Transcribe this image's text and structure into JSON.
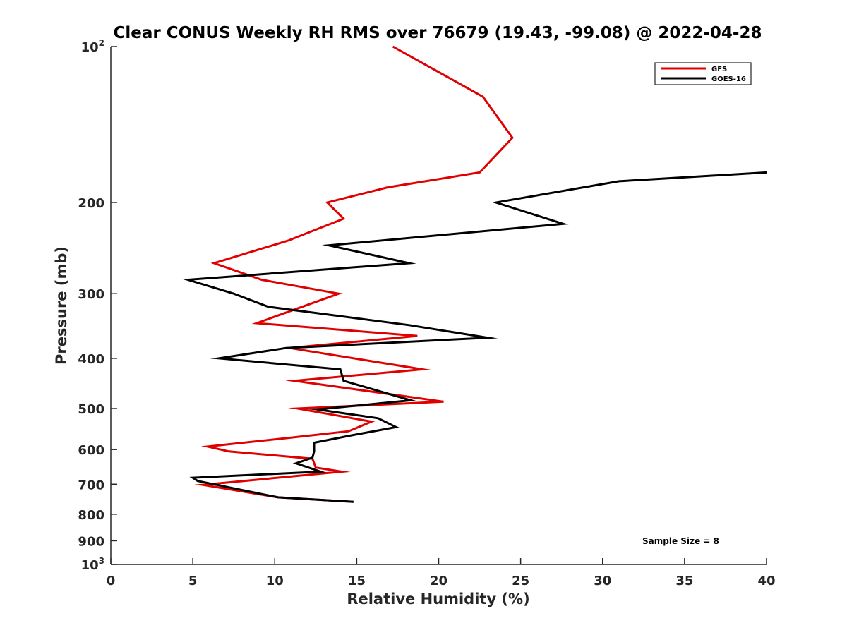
{
  "chart_data": {
    "type": "line",
    "title": "Clear CONUS Weekly RH RMS over 76679 (19.43, -99.08) @ 2022-04-28",
    "xlabel": "Relative Humidity (%)",
    "ylabel": "Pressure (mb)",
    "xlim": [
      0,
      40
    ],
    "ylim": [
      100,
      1000
    ],
    "y_scale": "log",
    "y_reversed": true,
    "grid": false,
    "x_ticks": [
      "0",
      "5",
      "10",
      "15",
      "20",
      "25",
      "30",
      "35",
      "40"
    ],
    "y_ticks": [
      {
        "value": 100,
        "base": "10",
        "exp": "2"
      },
      {
        "value": 200,
        "label": "200"
      },
      {
        "value": 300,
        "label": "300"
      },
      {
        "value": 400,
        "label": "400"
      },
      {
        "value": 500,
        "label": "500"
      },
      {
        "value": 600,
        "label": "600"
      },
      {
        "value": 700,
        "label": "700"
      },
      {
        "value": 800,
        "label": "800"
      },
      {
        "value": 900,
        "label": "900"
      },
      {
        "value": 1000,
        "base": "10",
        "exp": "3"
      }
    ],
    "legend_position": "top-right",
    "annotation": "Sample Size = 8",
    "series": [
      {
        "name": "GFS",
        "color": "#e00000",
        "points": [
          [
            17.2,
            100
          ],
          [
            22.7,
            125
          ],
          [
            24.5,
            150
          ],
          [
            22.5,
            175
          ],
          [
            16.9,
            187
          ],
          [
            13.2,
            200
          ],
          [
            14.2,
            215
          ],
          [
            10.8,
            237
          ],
          [
            6.3,
            262
          ],
          [
            9.2,
            282
          ],
          [
            13.9,
            300
          ],
          [
            8.9,
            342
          ],
          [
            18.7,
            362
          ],
          [
            10.9,
            382
          ],
          [
            19.0,
            420
          ],
          [
            11.2,
            442
          ],
          [
            20.3,
            485
          ],
          [
            11.4,
            500
          ],
          [
            15.9,
            530
          ],
          [
            14.5,
            553
          ],
          [
            10.8,
            570
          ],
          [
            5.9,
            592
          ],
          [
            7.2,
            605
          ],
          [
            12.3,
            625
          ],
          [
            12.5,
            650
          ],
          [
            14.1,
            662
          ],
          [
            5.6,
            702
          ],
          [
            10.2,
            742
          ],
          [
            14.8,
            757
          ]
        ]
      },
      {
        "name": "GOES-16",
        "color": "#000000",
        "points": [
          [
            40.0,
            175
          ],
          [
            31.0,
            182
          ],
          [
            23.5,
            200
          ],
          [
            27.6,
            220
          ],
          [
            13.3,
            242
          ],
          [
            18.2,
            262
          ],
          [
            4.7,
            282
          ],
          [
            7.5,
            300
          ],
          [
            9.6,
            318
          ],
          [
            18.2,
            345
          ],
          [
            23.0,
            365
          ],
          [
            10.7,
            382
          ],
          [
            6.6,
            400
          ],
          [
            14.0,
            420
          ],
          [
            14.2,
            442
          ],
          [
            18.3,
            482
          ],
          [
            12.6,
            502
          ],
          [
            16.3,
            522
          ],
          [
            17.4,
            543
          ],
          [
            14.6,
            564
          ],
          [
            12.4,
            582
          ],
          [
            12.4,
            605
          ],
          [
            12.3,
            622
          ],
          [
            11.3,
            638
          ],
          [
            12.8,
            662
          ],
          [
            5.0,
            680
          ],
          [
            5.3,
            690
          ],
          [
            10.2,
            742
          ],
          [
            14.8,
            757
          ]
        ]
      }
    ]
  }
}
